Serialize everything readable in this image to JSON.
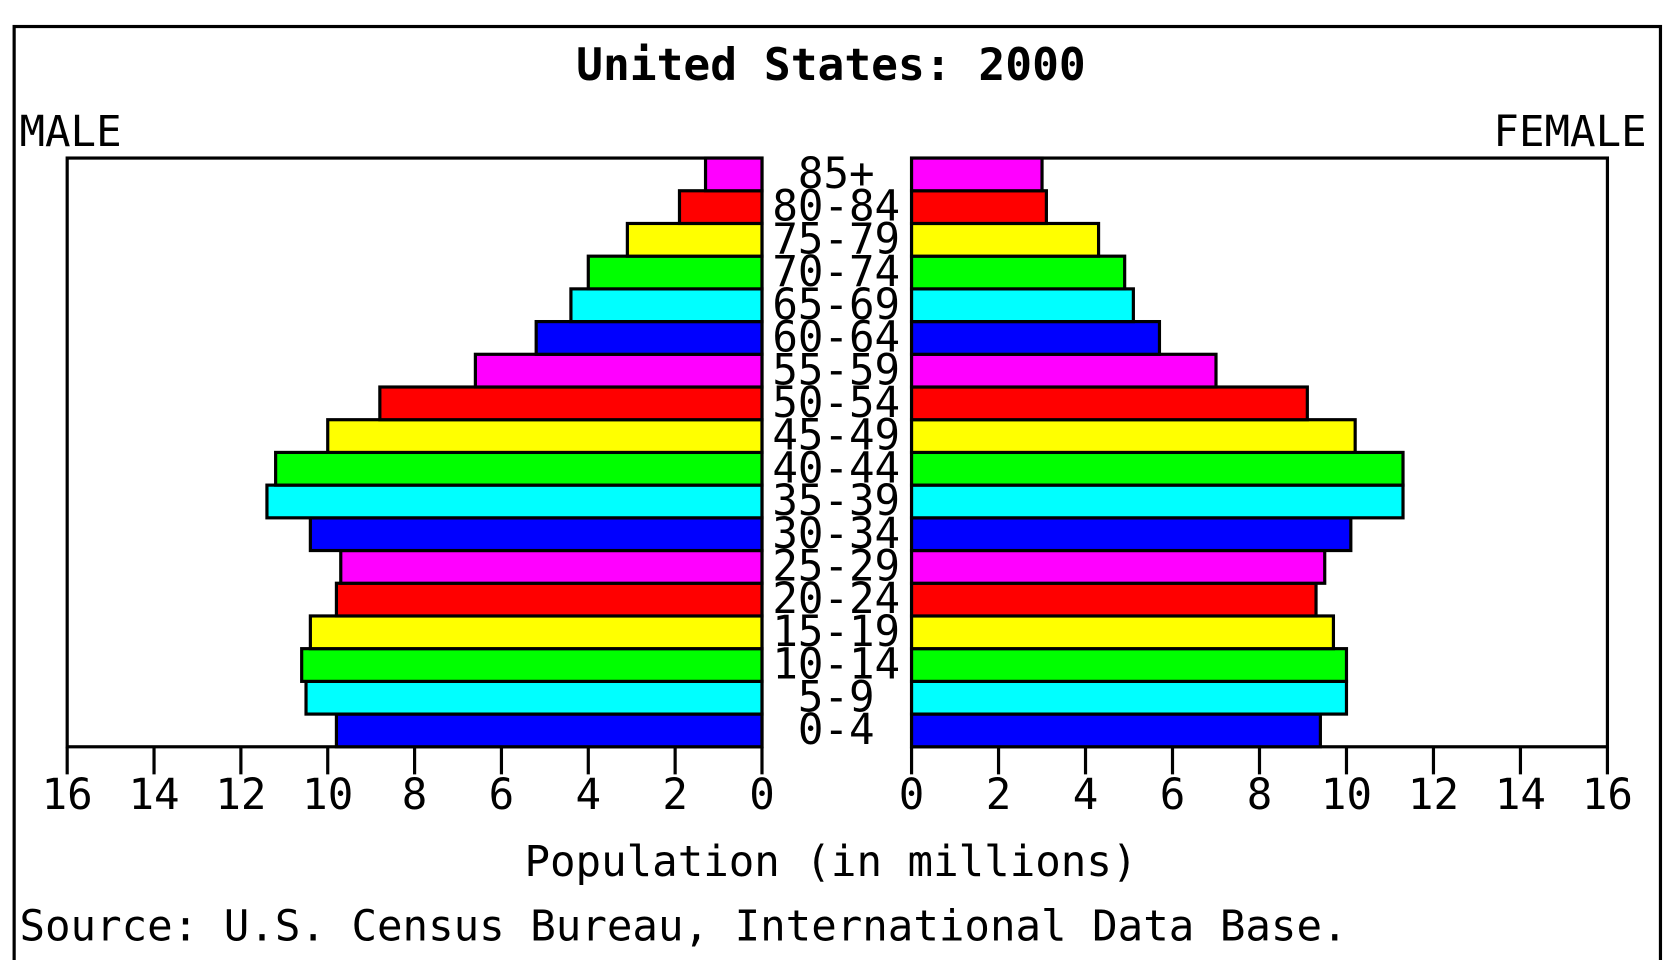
{
  "chart_data": {
    "type": "pyramid",
    "title": "United States: 2000",
    "categories": [
      "0-4",
      "5-9",
      "10-14",
      "15-19",
      "20-24",
      "25-29",
      "30-34",
      "35-39",
      "40-44",
      "45-49",
      "50-54",
      "55-59",
      "60-64",
      "65-69",
      "70-74",
      "75-79",
      "80-84",
      "85+"
    ],
    "colors": [
      "#0000ff",
      "#00ffff",
      "#00ff00",
      "#ffff00",
      "#ff0000",
      "#ff00ff",
      "#0000ff",
      "#00ffff",
      "#00ff00",
      "#ffff00",
      "#ff0000",
      "#ff00ff",
      "#0000ff",
      "#00ffff",
      "#00ff00",
      "#ffff00",
      "#ff0000",
      "#ff00ff"
    ],
    "series": [
      {
        "name": "MALE",
        "values": [
          9.8,
          10.5,
          10.6,
          10.4,
          9.8,
          9.7,
          10.4,
          11.4,
          11.2,
          10.0,
          8.8,
          6.6,
          5.2,
          4.4,
          4.0,
          3.1,
          1.9,
          1.3
        ]
      },
      {
        "name": "FEMALE",
        "values": [
          9.4,
          10.0,
          10.0,
          9.7,
          9.3,
          9.5,
          10.1,
          11.3,
          11.3,
          10.2,
          9.1,
          7.0,
          5.7,
          5.1,
          4.9,
          4.3,
          3.1,
          3.0
        ]
      }
    ],
    "xlim": [
      0,
      16
    ],
    "xticks": [
      0,
      2,
      4,
      6,
      8,
      10,
      12,
      14,
      16
    ],
    "xlabel": "Population (in millions)",
    "source": "Source: U.S. Census Bureau, International Data Base."
  }
}
